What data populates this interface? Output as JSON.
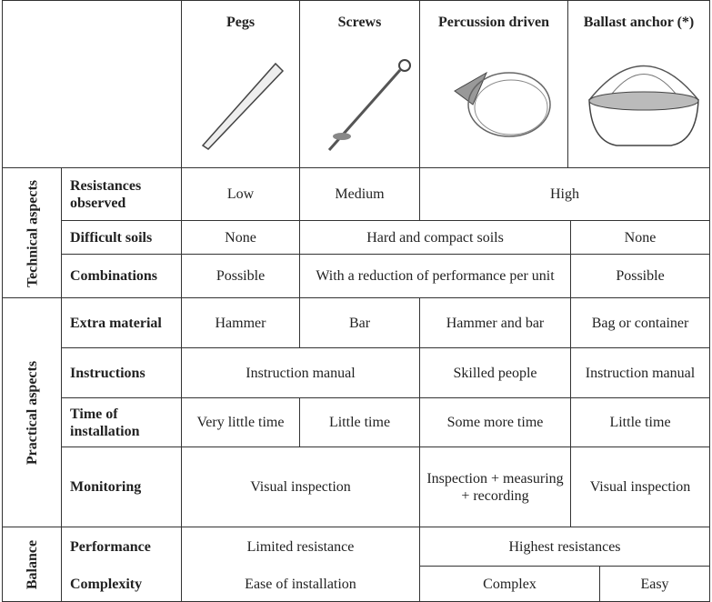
{
  "header": {
    "columns": [
      "Pegs",
      "Screws",
      "Percussion driven",
      "Ballast anchor (*)"
    ]
  },
  "groups": [
    {
      "title": "Technical aspects",
      "rows": [
        {
          "label": "Resistances observed",
          "cells": [
            "Low",
            "Medium",
            "High"
          ]
        },
        {
          "label": "Difficult soils",
          "cells": [
            "None",
            "Hard and compact soils",
            "None"
          ]
        },
        {
          "label": "Combinations",
          "cells": [
            "Possible",
            "With a reduction of performance per unit",
            "Possible"
          ]
        }
      ]
    },
    {
      "title": "Practical aspects",
      "rows": [
        {
          "label": "Extra material",
          "cells": [
            "Hammer",
            "Bar",
            "Hammer and bar",
            "Bag or container"
          ]
        },
        {
          "label": "Instructions",
          "cells": [
            "Instruction manual",
            "Skilled people",
            "Instruction manual"
          ]
        },
        {
          "label": "Time of installation",
          "cells": [
            "Very little time",
            "Little time",
            "Some more time",
            "Little time"
          ]
        },
        {
          "label": "Monitoring",
          "cells": [
            "Visual inspection",
            "Inspection + measuring + recording",
            "Visual inspection"
          ]
        }
      ]
    },
    {
      "title": "Balance",
      "rows": [
        {
          "label": "Performance",
          "cells": [
            "Limited resistance",
            "Highest resistances"
          ]
        },
        {
          "label": "Complexity",
          "cells": [
            "Ease of installation",
            "Complex",
            "Easy"
          ]
        }
      ]
    }
  ]
}
